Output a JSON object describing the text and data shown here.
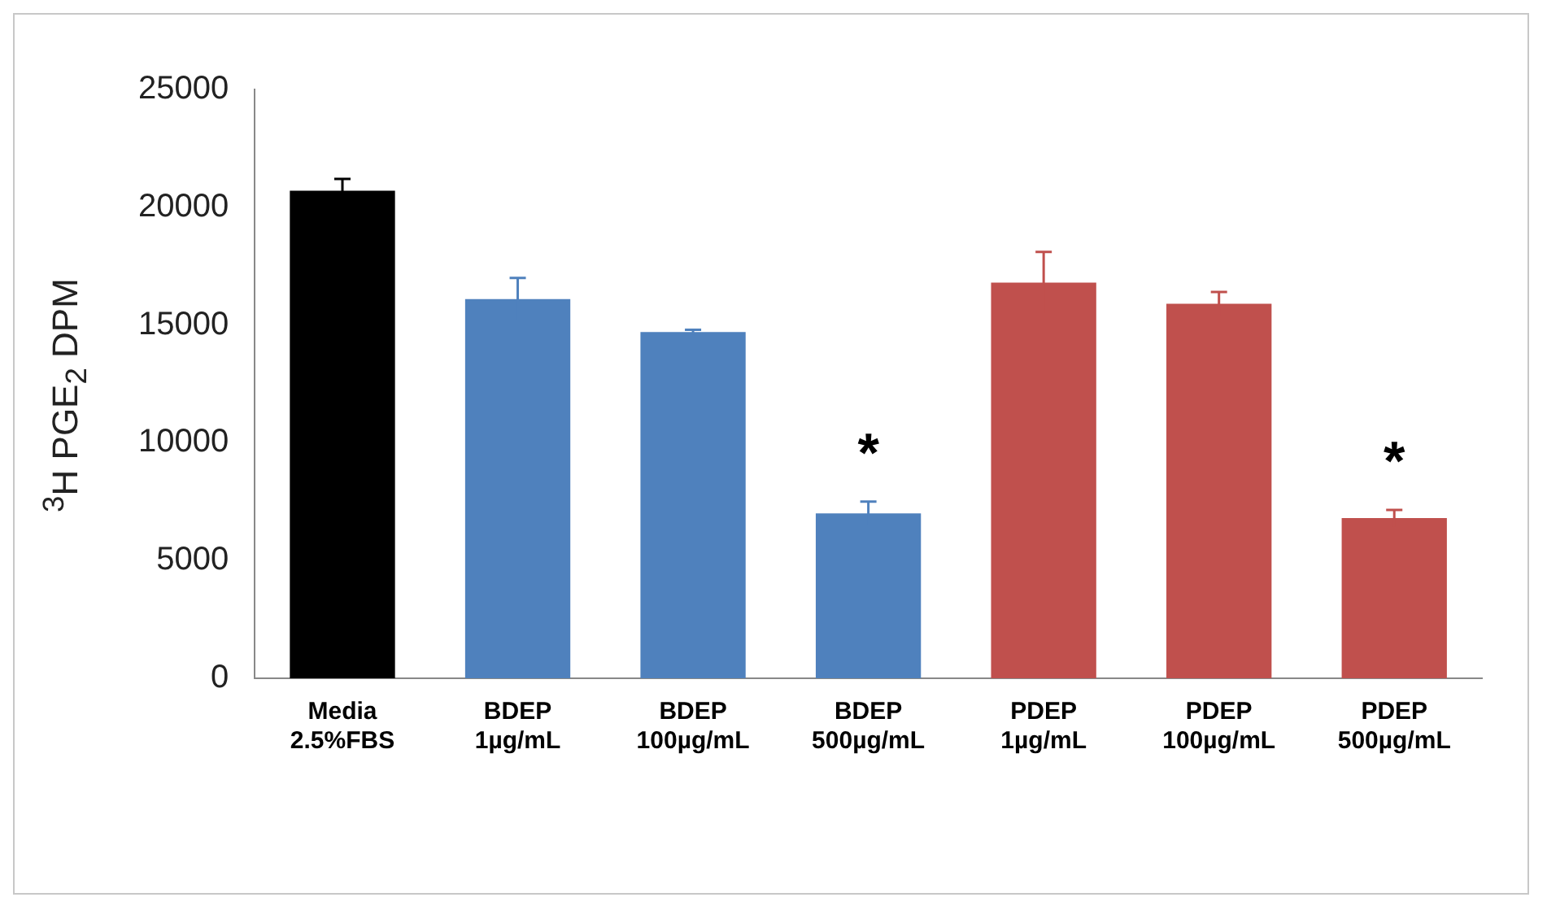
{
  "chart_data": {
    "type": "bar",
    "ylabel": "$^{3}$H PGE$_{2}$ DPM",
    "categories": [
      "Media\n2.5%FBS",
      "BDEP\n1µg/mL",
      "BDEP\n100µg/mL",
      "BDEP\n500µg/mL",
      "PDEP\n1µg/mL",
      "PDEP\n100µg/mL",
      "PDEP\n500µg/mL"
    ],
    "values": [
      20700,
      16100,
      14700,
      7000,
      16800,
      15900,
      6800
    ],
    "colors": [
      "#000000",
      "#4f81bd",
      "#4f81bd",
      "#4f81bd",
      "#c0504d",
      "#c0504d",
      "#c0504d"
    ],
    "errors": [
      500,
      900,
      100,
      500,
      1300,
      500,
      350
    ],
    "ylim": [
      0,
      25000
    ],
    "yticks": [
      0,
      5000,
      10000,
      15000,
      20000,
      25000
    ],
    "grid": false,
    "legend": false,
    "annotations": [
      {
        "text": "*",
        "x": "BDEP\n500µg/mL",
        "y": 7000
      },
      {
        "text": "*",
        "x": "PDEP\n500µg/mL",
        "y": 6800
      }
    ]
  }
}
